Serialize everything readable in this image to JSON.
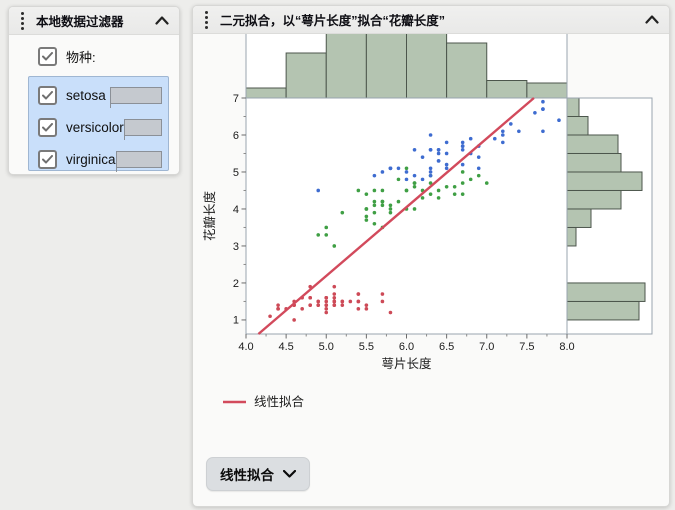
{
  "filter_panel": {
    "title": "本地数据过滤器",
    "field_label": "物种:",
    "levels": [
      {
        "label": "setosa"
      },
      {
        "label": "versicolor"
      },
      {
        "label": "virginica"
      }
    ]
  },
  "fit_panel": {
    "title": "二元拟合，以“萼片长度”拟合“花瓣长度”",
    "button_label": "线性拟合"
  },
  "chart_data": {
    "type": "scatter",
    "title": "二元拟合，以“萼片长度”拟合“花瓣长度”",
    "xlabel": "萼片长度",
    "ylabel": "花瓣长度",
    "xlim": [
      4.0,
      8.0
    ],
    "ylim": [
      0.62,
      7.0
    ],
    "x_ticks": [
      "4.0",
      "4.5",
      "5.0",
      "5.5",
      "6.0",
      "6.5",
      "7.0",
      "7.5",
      "8.0"
    ],
    "y_ticks": [
      "1",
      "2",
      "3",
      "4",
      "5",
      "6",
      "7"
    ],
    "grid": false,
    "legend_position": "bottom-left",
    "colors": {
      "histogram_fill": "#b4c4b1",
      "histogram_stroke": "#4c564c",
      "frame_stroke": "#99a4af",
      "setosa": "#cd4a57",
      "versicolor": "#3f9f44",
      "virginica": "#3e6cd0",
      "fit_line": "#d24a5c"
    },
    "fit_line": {
      "label": "线性拟合",
      "slope": 1.8584,
      "intercept": -7.1014
    },
    "x_histogram": {
      "bin_start": 4.0,
      "bin_width": 0.5,
      "counts": [
        4,
        18,
        30,
        31,
        32,
        22,
        7,
        6
      ]
    },
    "y_histogram": {
      "bin_start": 1.0,
      "bin_width": 0.5,
      "counts": [
        24,
        26,
        0,
        0,
        3,
        8,
        18,
        25,
        18,
        17,
        7,
        4
      ]
    },
    "series": [
      {
        "name": "setosa",
        "color": "#cd4a57",
        "points": [
          [
            5.1,
            1.4
          ],
          [
            4.9,
            1.4
          ],
          [
            4.7,
            1.3
          ],
          [
            4.6,
            1.5
          ],
          [
            5.0,
            1.4
          ],
          [
            5.4,
            1.7
          ],
          [
            4.6,
            1.4
          ],
          [
            5.0,
            1.5
          ],
          [
            4.4,
            1.4
          ],
          [
            4.9,
            1.5
          ],
          [
            5.4,
            1.5
          ],
          [
            4.8,
            1.6
          ],
          [
            4.8,
            1.4
          ],
          [
            4.3,
            1.1
          ],
          [
            5.8,
            1.2
          ],
          [
            5.7,
            1.5
          ],
          [
            5.4,
            1.3
          ],
          [
            5.1,
            1.4
          ],
          [
            5.7,
            1.7
          ],
          [
            5.1,
            1.5
          ],
          [
            5.4,
            1.7
          ],
          [
            5.1,
            1.5
          ],
          [
            4.6,
            1.0
          ],
          [
            5.1,
            1.7
          ],
          [
            4.8,
            1.9
          ],
          [
            5.0,
            1.6
          ],
          [
            5.0,
            1.6
          ],
          [
            5.2,
            1.5
          ],
          [
            5.2,
            1.4
          ],
          [
            4.7,
            1.6
          ],
          [
            4.8,
            1.6
          ],
          [
            5.4,
            1.5
          ],
          [
            5.2,
            1.5
          ],
          [
            5.5,
            1.4
          ],
          [
            4.9,
            1.5
          ],
          [
            5.0,
            1.2
          ],
          [
            5.5,
            1.3
          ],
          [
            4.9,
            1.4
          ],
          [
            4.4,
            1.3
          ],
          [
            5.1,
            1.5
          ],
          [
            5.0,
            1.3
          ],
          [
            4.5,
            1.3
          ],
          [
            4.4,
            1.3
          ],
          [
            5.0,
            1.6
          ],
          [
            5.1,
            1.9
          ],
          [
            4.8,
            1.4
          ],
          [
            5.1,
            1.6
          ],
          [
            4.6,
            1.4
          ],
          [
            5.3,
            1.5
          ],
          [
            5.0,
            1.4
          ]
        ]
      },
      {
        "name": "versicolor",
        "color": "#3f9f44",
        "points": [
          [
            7.0,
            4.7
          ],
          [
            6.4,
            4.5
          ],
          [
            6.9,
            4.9
          ],
          [
            5.5,
            4.0
          ],
          [
            6.5,
            4.6
          ],
          [
            5.7,
            4.5
          ],
          [
            6.3,
            4.7
          ],
          [
            4.9,
            3.3
          ],
          [
            6.6,
            4.6
          ],
          [
            5.2,
            3.9
          ],
          [
            5.0,
            3.5
          ],
          [
            5.9,
            4.2
          ],
          [
            6.0,
            4.0
          ],
          [
            6.1,
            4.7
          ],
          [
            5.6,
            3.6
          ],
          [
            6.7,
            4.4
          ],
          [
            5.6,
            4.5
          ],
          [
            5.8,
            4.1
          ],
          [
            6.2,
            4.5
          ],
          [
            5.6,
            3.9
          ],
          [
            5.9,
            4.8
          ],
          [
            6.1,
            4.0
          ],
          [
            6.3,
            4.9
          ],
          [
            6.1,
            4.7
          ],
          [
            6.4,
            4.3
          ],
          [
            6.6,
            4.4
          ],
          [
            6.8,
            4.8
          ],
          [
            6.7,
            5.0
          ],
          [
            6.0,
            4.5
          ],
          [
            5.7,
            3.5
          ],
          [
            5.5,
            3.8
          ],
          [
            5.5,
            3.7
          ],
          [
            5.8,
            3.9
          ],
          [
            6.0,
            5.1
          ],
          [
            5.4,
            4.5
          ],
          [
            6.0,
            4.5
          ],
          [
            6.7,
            4.7
          ],
          [
            6.3,
            4.4
          ],
          [
            5.6,
            4.1
          ],
          [
            5.5,
            4.0
          ],
          [
            5.5,
            4.4
          ],
          [
            6.1,
            4.6
          ],
          [
            5.8,
            4.0
          ],
          [
            5.0,
            3.3
          ],
          [
            5.6,
            4.2
          ],
          [
            5.7,
            4.2
          ],
          [
            5.7,
            4.2
          ],
          [
            6.2,
            4.3
          ],
          [
            5.1,
            3.0
          ],
          [
            5.7,
            4.1
          ]
        ]
      },
      {
        "name": "virginica",
        "color": "#3e6cd0",
        "points": [
          [
            6.3,
            6.0
          ],
          [
            5.8,
            5.1
          ],
          [
            7.1,
            5.9
          ],
          [
            6.3,
            5.6
          ],
          [
            6.5,
            5.8
          ],
          [
            7.6,
            6.6
          ],
          [
            4.9,
            4.5
          ],
          [
            7.3,
            6.3
          ],
          [
            6.7,
            5.8
          ],
          [
            7.2,
            6.1
          ],
          [
            6.5,
            5.1
          ],
          [
            6.4,
            5.3
          ],
          [
            6.8,
            5.5
          ],
          [
            5.7,
            5.0
          ],
          [
            5.8,
            5.1
          ],
          [
            6.4,
            5.3
          ],
          [
            6.5,
            5.5
          ],
          [
            7.7,
            6.7
          ],
          [
            7.7,
            6.9
          ],
          [
            6.0,
            5.0
          ],
          [
            6.9,
            5.7
          ],
          [
            5.6,
            4.9
          ],
          [
            7.7,
            6.7
          ],
          [
            6.3,
            4.9
          ],
          [
            6.7,
            5.7
          ],
          [
            7.2,
            6.0
          ],
          [
            6.2,
            4.8
          ],
          [
            6.1,
            4.9
          ],
          [
            6.4,
            5.6
          ],
          [
            7.2,
            5.8
          ],
          [
            7.4,
            6.1
          ],
          [
            7.9,
            6.4
          ],
          [
            6.4,
            5.6
          ],
          [
            6.3,
            5.1
          ],
          [
            6.1,
            5.6
          ],
          [
            7.7,
            6.1
          ],
          [
            6.3,
            5.6
          ],
          [
            6.4,
            5.5
          ],
          [
            6.0,
            4.8
          ],
          [
            6.9,
            5.4
          ],
          [
            6.7,
            5.6
          ],
          [
            6.9,
            5.1
          ],
          [
            5.8,
            5.1
          ],
          [
            6.8,
            5.9
          ],
          [
            6.7,
            5.7
          ],
          [
            6.7,
            5.2
          ],
          [
            6.3,
            5.0
          ],
          [
            6.5,
            5.2
          ],
          [
            6.2,
            5.4
          ],
          [
            5.9,
            5.1
          ]
        ]
      }
    ]
  }
}
